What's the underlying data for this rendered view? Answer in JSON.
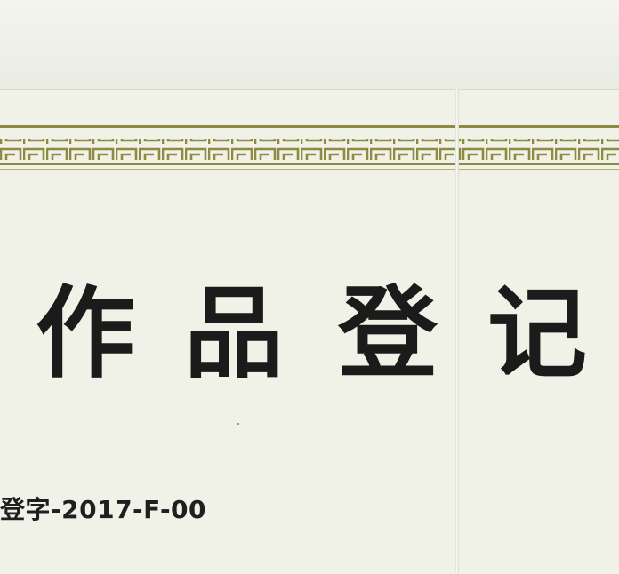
{
  "certificate": {
    "title_chars": [
      "作",
      "品",
      "登",
      "记"
    ],
    "registration_number": "登字-2017-F-00"
  },
  "colors": {
    "paper": "#f1f2e7",
    "border_ornament": "#8e8a42",
    "text": "#1b1b1b"
  }
}
